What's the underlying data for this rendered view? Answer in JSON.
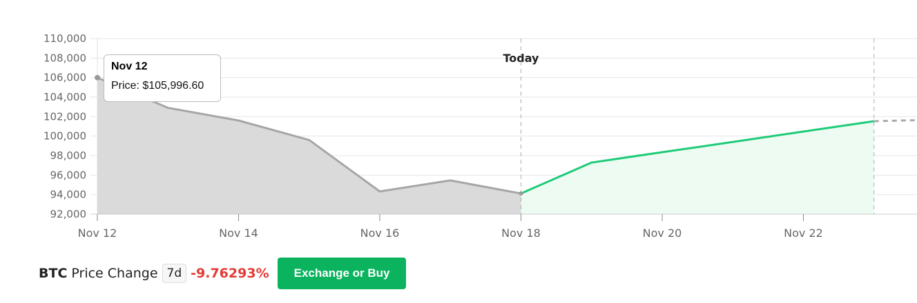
{
  "chart_data": {
    "type": "area",
    "title": "",
    "xlabel": "",
    "ylabel": "",
    "ylim": [
      92000,
      110000
    ],
    "yticks": [
      "92,000",
      "94,000",
      "96,000",
      "98,000",
      "100,000",
      "102,000",
      "104,000",
      "106,000",
      "108,000",
      "110,000"
    ],
    "yvalues": [
      92000,
      94000,
      96000,
      98000,
      100000,
      102000,
      104000,
      106000,
      108000,
      110000
    ],
    "xticks": [
      "Nov 12",
      "Nov 14",
      "Nov 16",
      "Nov 18",
      "Nov 20",
      "Nov 22"
    ],
    "grid": true,
    "today_label": "Today",
    "series": [
      {
        "kind": "historical",
        "color": "#a6a6a6",
        "fill": "#dadada",
        "x": [
          "Nov 12",
          "Nov 13",
          "Nov 14",
          "Nov 15",
          "Nov 16",
          "Nov 17",
          "Nov 18"
        ],
        "values": [
          105996.6,
          102900,
          101600,
          99600,
          94330,
          95460,
          94120
        ]
      },
      {
        "kind": "forecast",
        "color": "#1ecb78",
        "fill": "#edfbf3",
        "x": [
          "Nov 18",
          "Nov 19",
          "Nov 20",
          "Nov 21",
          "Nov 22",
          "Nov 23"
        ],
        "values": [
          94120,
          97290,
          98350,
          99400,
          100470,
          101530
        ]
      }
    ],
    "tooltip": {
      "date": "Nov 12",
      "price": "Price: $105,996.60"
    }
  },
  "footer": {
    "symbol": "BTC",
    "label": "Price Change",
    "period": "7d",
    "change": "-9.76293%",
    "change_color": "#e53935",
    "button": "Exchange or Buy",
    "button_color": "#0bb35e"
  }
}
